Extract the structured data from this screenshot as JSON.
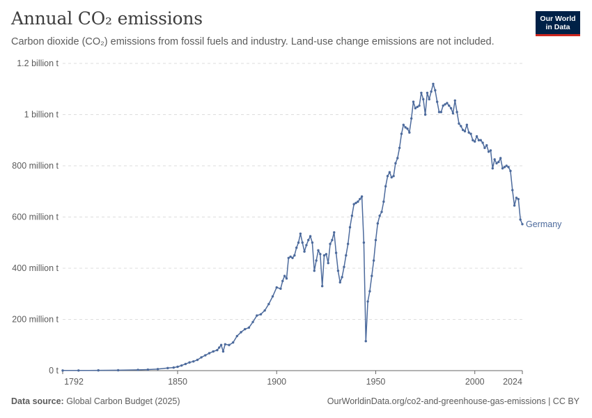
{
  "header": {
    "title": "Annual CO₂ emissions",
    "subtitle": "Carbon dioxide (CO₂) emissions from fossil fuels and industry. Land-use change emissions are not included."
  },
  "logo": {
    "line1": "Our World",
    "line2": "in Data"
  },
  "footer": {
    "source_label": "Data source:",
    "source_value": "Global Carbon Budget (2025)",
    "url": "OurWorldinData.org/co2-and-greenhouse-gas-emissions | CC BY"
  },
  "colors": {
    "series": "#4c6a9c",
    "grid": "#dddddd",
    "axis": "#666666",
    "text": "#5b5b5b"
  },
  "chart_data": {
    "type": "line",
    "title": "Annual CO₂ emissions",
    "xlabel": "",
    "ylabel": "",
    "xlim": [
      1792,
      2024
    ],
    "ylim": [
      0,
      1200
    ],
    "unit": "million t",
    "x_ticks": [
      1792,
      1850,
      1900,
      1950,
      2000,
      2024
    ],
    "y_ticks": [
      {
        "value": 0,
        "label": "0 t"
      },
      {
        "value": 200,
        "label": "200 million t"
      },
      {
        "value": 400,
        "label": "400 million t"
      },
      {
        "value": 600,
        "label": "600 million t"
      },
      {
        "value": 800,
        "label": "800 million t"
      },
      {
        "value": 1000,
        "label": "1 billion t"
      },
      {
        "value": 1200,
        "label": "1.2 billion t"
      }
    ],
    "grid": true,
    "series": [
      {
        "name": "Germany",
        "points": [
          [
            1792,
            0.5
          ],
          [
            1800,
            0.6
          ],
          [
            1810,
            1.0
          ],
          [
            1820,
            1.5
          ],
          [
            1830,
            3
          ],
          [
            1835,
            4
          ],
          [
            1840,
            6
          ],
          [
            1845,
            10
          ],
          [
            1848,
            12
          ],
          [
            1850,
            15
          ],
          [
            1852,
            20
          ],
          [
            1854,
            26
          ],
          [
            1856,
            32
          ],
          [
            1858,
            36
          ],
          [
            1860,
            42
          ],
          [
            1862,
            52
          ],
          [
            1864,
            60
          ],
          [
            1866,
            68
          ],
          [
            1868,
            75
          ],
          [
            1870,
            80
          ],
          [
            1871,
            90
          ],
          [
            1872,
            100
          ],
          [
            1873,
            75
          ],
          [
            1874,
            103
          ],
          [
            1876,
            100
          ],
          [
            1878,
            110
          ],
          [
            1880,
            135
          ],
          [
            1882,
            150
          ],
          [
            1884,
            162
          ],
          [
            1886,
            168
          ],
          [
            1888,
            190
          ],
          [
            1890,
            215
          ],
          [
            1892,
            220
          ],
          [
            1894,
            235
          ],
          [
            1896,
            260
          ],
          [
            1898,
            290
          ],
          [
            1900,
            325
          ],
          [
            1902,
            320
          ],
          [
            1903,
            350
          ],
          [
            1904,
            370
          ],
          [
            1905,
            360
          ],
          [
            1906,
            440
          ],
          [
            1907,
            445
          ],
          [
            1908,
            440
          ],
          [
            1909,
            450
          ],
          [
            1910,
            480
          ],
          [
            1911,
            500
          ],
          [
            1912,
            535
          ],
          [
            1913,
            500
          ],
          [
            1914,
            465
          ],
          [
            1915,
            490
          ],
          [
            1916,
            510
          ],
          [
            1917,
            525
          ],
          [
            1918,
            500
          ],
          [
            1919,
            390
          ],
          [
            1920,
            430
          ],
          [
            1921,
            470
          ],
          [
            1922,
            455
          ],
          [
            1923,
            330
          ],
          [
            1924,
            450
          ],
          [
            1925,
            455
          ],
          [
            1926,
            420
          ],
          [
            1927,
            495
          ],
          [
            1928,
            510
          ],
          [
            1929,
            540
          ],
          [
            1930,
            460
          ],
          [
            1931,
            390
          ],
          [
            1932,
            345
          ],
          [
            1933,
            365
          ],
          [
            1934,
            405
          ],
          [
            1935,
            450
          ],
          [
            1936,
            495
          ],
          [
            1937,
            560
          ],
          [
            1938,
            605
          ],
          [
            1939,
            650
          ],
          [
            1940,
            655
          ],
          [
            1941,
            660
          ],
          [
            1942,
            670
          ],
          [
            1943,
            680
          ],
          [
            1944,
            500
          ],
          [
            1945,
            115
          ],
          [
            1946,
            270
          ],
          [
            1947,
            310
          ],
          [
            1948,
            370
          ],
          [
            1949,
            430
          ],
          [
            1950,
            510
          ],
          [
            1951,
            575
          ],
          [
            1952,
            605
          ],
          [
            1953,
            620
          ],
          [
            1954,
            660
          ],
          [
            1955,
            720
          ],
          [
            1956,
            760
          ],
          [
            1957,
            775
          ],
          [
            1958,
            755
          ],
          [
            1959,
            760
          ],
          [
            1960,
            810
          ],
          [
            1961,
            830
          ],
          [
            1962,
            870
          ],
          [
            1963,
            925
          ],
          [
            1964,
            960
          ],
          [
            1965,
            950
          ],
          [
            1966,
            945
          ],
          [
            1967,
            930
          ],
          [
            1968,
            985
          ],
          [
            1969,
            1050
          ],
          [
            1970,
            1025
          ],
          [
            1971,
            1030
          ],
          [
            1972,
            1035
          ],
          [
            1973,
            1085
          ],
          [
            1974,
            1060
          ],
          [
            1975,
            1000
          ],
          [
            1976,
            1085
          ],
          [
            1977,
            1060
          ],
          [
            1978,
            1090
          ],
          [
            1979,
            1120
          ],
          [
            1980,
            1095
          ],
          [
            1981,
            1050
          ],
          [
            1982,
            1010
          ],
          [
            1983,
            1010
          ],
          [
            1984,
            1035
          ],
          [
            1985,
            1040
          ],
          [
            1986,
            1045
          ],
          [
            1987,
            1035
          ],
          [
            1988,
            1025
          ],
          [
            1989,
            1005
          ],
          [
            1990,
            1055
          ],
          [
            1991,
            1010
          ],
          [
            1992,
            965
          ],
          [
            1993,
            955
          ],
          [
            1994,
            940
          ],
          [
            1995,
            935
          ],
          [
            1996,
            960
          ],
          [
            1997,
            930
          ],
          [
            1998,
            925
          ],
          [
            1999,
            900
          ],
          [
            2000,
            895
          ],
          [
            2001,
            915
          ],
          [
            2002,
            900
          ],
          [
            2003,
            900
          ],
          [
            2004,
            890
          ],
          [
            2005,
            870
          ],
          [
            2006,
            880
          ],
          [
            2007,
            855
          ],
          [
            2008,
            860
          ],
          [
            2009,
            790
          ],
          [
            2010,
            825
          ],
          [
            2011,
            810
          ],
          [
            2012,
            815
          ],
          [
            2013,
            830
          ],
          [
            2014,
            790
          ],
          [
            2015,
            795
          ],
          [
            2016,
            800
          ],
          [
            2017,
            795
          ],
          [
            2018,
            780
          ],
          [
            2019,
            705
          ],
          [
            2020,
            645
          ],
          [
            2021,
            675
          ],
          [
            2022,
            670
          ],
          [
            2023,
            590
          ],
          [
            2024,
            572
          ]
        ]
      }
    ]
  }
}
